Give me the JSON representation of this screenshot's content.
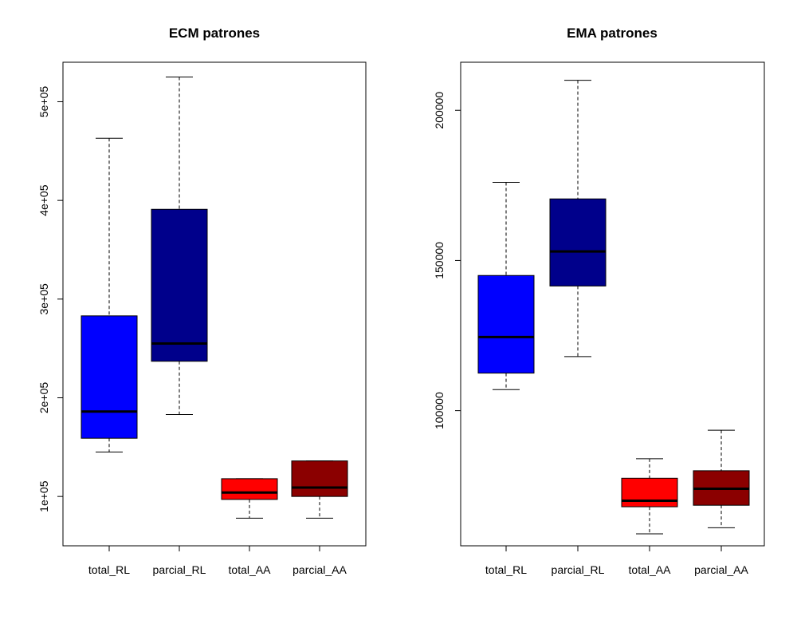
{
  "chart_data": [
    {
      "type": "box",
      "title": "ECM patrones",
      "xlabel": "",
      "ylabel": "",
      "categories": [
        "total_RL",
        "parcial_RL",
        "total_AA",
        "parcial_AA"
      ],
      "yticks": [
        100000,
        200000,
        300000,
        400000,
        500000
      ],
      "ytick_labels": [
        "1e+05",
        "2e+05",
        "3e+05",
        "4e+05",
        "5e+05"
      ],
      "ylim": [
        50000,
        540000
      ],
      "grid": false,
      "boxes": [
        {
          "category": "total_RL",
          "color": "#0000ff",
          "min": 145000,
          "q1": 159000,
          "median": 186000,
          "q3": 283000,
          "max": 463000
        },
        {
          "category": "parcial_RL",
          "color": "#00008b",
          "min": 183000,
          "q1": 237000,
          "median": 255000,
          "q3": 391000,
          "max": 525000
        },
        {
          "category": "total_AA",
          "color": "#ff0000",
          "min": 78000,
          "q1": 97000,
          "median": 104000,
          "q3": 118000,
          "max": 118000
        },
        {
          "category": "parcial_AA",
          "color": "#8b0000",
          "min": 78000,
          "q1": 100000,
          "median": 109000,
          "q3": 136000,
          "max": 136000
        }
      ]
    },
    {
      "type": "box",
      "title": "EMA patrones",
      "xlabel": "",
      "ylabel": "",
      "categories": [
        "total_RL",
        "parcial_RL",
        "total_AA",
        "parcial_AA"
      ],
      "yticks": [
        100000,
        150000,
        200000
      ],
      "ytick_labels": [
        "100000",
        "150000",
        "200000"
      ],
      "ylim": [
        55000,
        216000
      ],
      "grid": false,
      "boxes": [
        {
          "category": "total_RL",
          "color": "#0000ff",
          "min": 107000,
          "q1": 112500,
          "median": 124500,
          "q3": 145000,
          "max": 176000
        },
        {
          "category": "parcial_RL",
          "color": "#00008b",
          "min": 118000,
          "q1": 141500,
          "median": 153000,
          "q3": 170500,
          "max": 210000
        },
        {
          "category": "total_AA",
          "color": "#ff0000",
          "min": 59000,
          "q1": 68000,
          "median": 70000,
          "q3": 77500,
          "max": 84000
        },
        {
          "category": "parcial_AA",
          "color": "#8b0000",
          "min": 61000,
          "q1": 68500,
          "median": 74000,
          "q3": 80000,
          "max": 93500
        }
      ]
    }
  ]
}
